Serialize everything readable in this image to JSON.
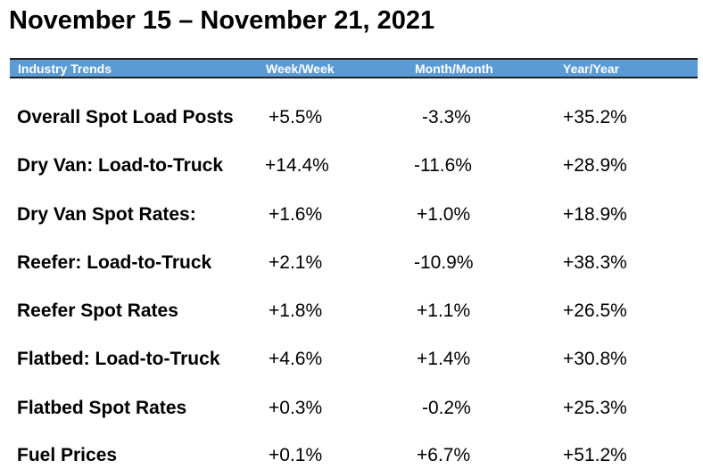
{
  "title": "November 15 – November 21, 2021",
  "header": {
    "label": "Industry Trends",
    "week": "Week/Week",
    "month": "Month/Month",
    "year": "Year/Year"
  },
  "rows": [
    {
      "label": "Overall Spot Load Posts",
      "week": "+5.5%",
      "month": "-3.3%",
      "year": "+35.2%"
    },
    {
      "label": "Dry Van: Load-to-Truck",
      "week": "+14.4%",
      "month": "-11.6%",
      "year": "+28.9%"
    },
    {
      "label": "Dry Van Spot Rates:",
      "week": "+1.6%",
      "month": "+1.0%",
      "year": "+18.9%"
    },
    {
      "label": "Reefer: Load-to-Truck",
      "week": "+2.1%",
      "month": "-10.9%",
      "year": "+38.3%"
    },
    {
      "label": "Reefer Spot Rates",
      "week": "+1.8%",
      "month": "+1.1%",
      "year": "+26.5%"
    },
    {
      "label": "Flatbed: Load-to-Truck",
      "week": "+4.6%",
      "month": "+1.4%",
      "year": "+30.8%"
    },
    {
      "label": "Flatbed Spot Rates",
      "week": "+0.3%",
      "month": "-0.2%",
      "year": "+25.3%"
    },
    {
      "label": "Fuel Prices",
      "week": "+0.1%",
      "month": "+6.7%",
      "year": "+51.2%"
    }
  ],
  "colors": {
    "header_bg": "#5b9bd5",
    "header_text": "#ffffff"
  }
}
